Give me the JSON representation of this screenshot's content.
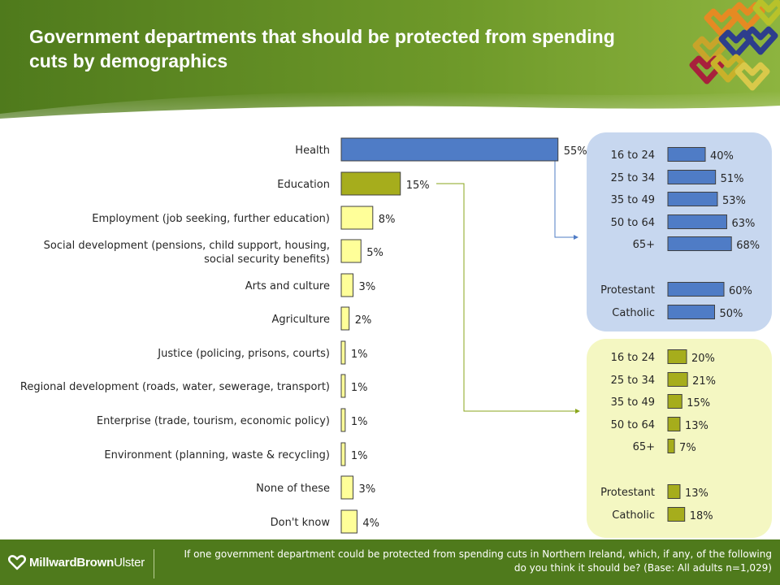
{
  "header": {
    "title": "Government departments that should be protected from spending cuts by demographics"
  },
  "colors": {
    "header_green": "#4f7a1c",
    "health_blue": "#4f7cc6",
    "education_olive": "#a6ad1c",
    "other_yellow": "#ffff99",
    "blue_panel": "#c7d7ef",
    "yellow_panel": "#f4f7c2"
  },
  "chart_data": [
    {
      "type": "bar",
      "orientation": "horizontal",
      "categories": [
        "Health",
        "Education",
        "Employment (job seeking, further education)",
        "Social development (pensions, child support, housing, social security benefits)",
        "Arts and culture",
        "Agriculture",
        "Justice (policing, prisons, courts)",
        "Regional development (roads, water, sewerage, transport)",
        "Enterprise (trade, tourism, economic policy)",
        "Environment (planning, waste & recycling)",
        "None of these",
        "Don't know"
      ],
      "values": [
        55,
        15,
        8,
        5,
        3,
        2,
        1,
        1,
        1,
        1,
        3,
        4
      ],
      "value_labels": [
        "55%",
        "15%",
        "8%",
        "5%",
        "3%",
        "2%",
        "1%",
        "1%",
        "1%",
        "1%",
        "3%",
        "4%"
      ],
      "unit": "%"
    },
    {
      "type": "bar",
      "orientation": "horizontal",
      "breakdown_of": "Health",
      "categories": [
        "16 to 24",
        "25 to 34",
        "35 to 49",
        "50 to 64",
        "65+",
        "Protestant",
        "Catholic"
      ],
      "values": [
        40,
        51,
        53,
        63,
        68,
        60,
        50
      ],
      "value_labels": [
        "40%",
        "51%",
        "53%",
        "63%",
        "68%",
        "60%",
        "50%"
      ],
      "unit": "%"
    },
    {
      "type": "bar",
      "orientation": "horizontal",
      "breakdown_of": "Education",
      "categories": [
        "16 to 24",
        "25 to 34",
        "35 to 49",
        "50 to 64",
        "65+",
        "Protestant",
        "Catholic"
      ],
      "values": [
        20,
        21,
        15,
        13,
        7,
        13,
        18
      ],
      "value_labels": [
        "20%",
        "21%",
        "15%",
        "13%",
        "7%",
        "13%",
        "18%"
      ],
      "unit": "%"
    }
  ],
  "footer": {
    "brand_main": "MillwardBrown",
    "brand_sub": "Ulster",
    "note": "If one government department could be protected from spending cuts in Northern Ireland, which, if any, of the following do you think it should be? (Base: All adults n=1,029)"
  }
}
